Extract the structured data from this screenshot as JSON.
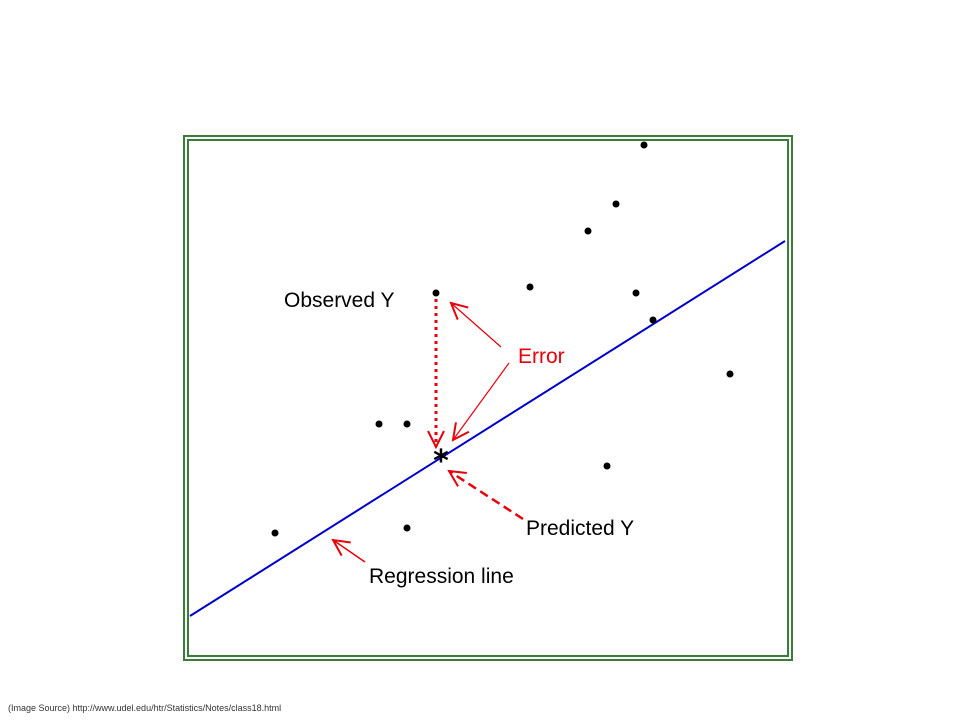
{
  "diagram": {
    "labels": {
      "observed": "Observed Y",
      "error": "Error",
      "predicted": "Predicted Y",
      "regression": "Regression line"
    },
    "colors": {
      "frame": "#3a7d3a",
      "line": "#0000cc",
      "annotation": "#e8000b",
      "points": "#000000"
    }
  },
  "footer": {
    "source": "(Image Source) http://www.udel.edu/htr/Statistics/Notes/class18.html"
  }
}
